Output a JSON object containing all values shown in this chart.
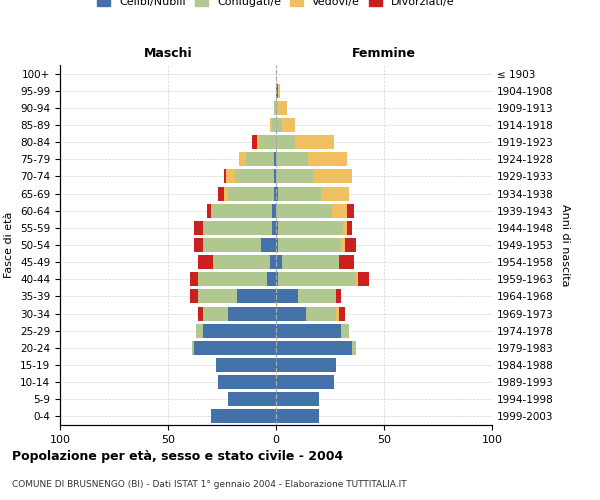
{
  "age_groups": [
    "0-4",
    "5-9",
    "10-14",
    "15-19",
    "20-24",
    "25-29",
    "30-34",
    "35-39",
    "40-44",
    "45-49",
    "50-54",
    "55-59",
    "60-64",
    "65-69",
    "70-74",
    "75-79",
    "80-84",
    "85-89",
    "90-94",
    "95-99",
    "100+"
  ],
  "birth_years": [
    "1999-2003",
    "1994-1998",
    "1989-1993",
    "1984-1988",
    "1979-1983",
    "1974-1978",
    "1969-1973",
    "1964-1968",
    "1959-1963",
    "1954-1958",
    "1949-1953",
    "1944-1948",
    "1939-1943",
    "1934-1938",
    "1929-1933",
    "1924-1928",
    "1919-1923",
    "1914-1918",
    "1909-1913",
    "1904-1908",
    "≤ 1903"
  ],
  "colors": {
    "celibi": "#4472a8",
    "coniugati": "#b0c890",
    "vedovi": "#f0c060",
    "divorziati": "#cc2020"
  },
  "maschi": {
    "celibi": [
      30,
      22,
      27,
      28,
      38,
      34,
      22,
      18,
      4,
      3,
      7,
      2,
      2,
      1,
      1,
      1,
      0,
      0,
      0,
      0,
      0
    ],
    "coniugati": [
      0,
      0,
      0,
      0,
      1,
      3,
      12,
      18,
      32,
      26,
      27,
      32,
      28,
      21,
      18,
      13,
      8,
      2,
      1,
      0,
      0
    ],
    "vedovi": [
      0,
      0,
      0,
      0,
      0,
      0,
      0,
      0,
      0,
      0,
      0,
      0,
      0,
      2,
      4,
      3,
      1,
      1,
      0,
      0,
      0
    ],
    "divorziati": [
      0,
      0,
      0,
      0,
      0,
      0,
      2,
      4,
      4,
      7,
      4,
      4,
      2,
      3,
      1,
      0,
      2,
      0,
      0,
      0,
      0
    ]
  },
  "femmine": {
    "nubili": [
      20,
      20,
      27,
      28,
      35,
      30,
      14,
      10,
      1,
      3,
      1,
      1,
      0,
      1,
      0,
      0,
      0,
      0,
      0,
      1,
      0
    ],
    "coniugate": [
      0,
      0,
      0,
      0,
      2,
      4,
      14,
      18,
      36,
      26,
      29,
      30,
      26,
      20,
      17,
      15,
      9,
      3,
      1,
      0,
      0
    ],
    "vedove": [
      0,
      0,
      0,
      0,
      0,
      0,
      1,
      0,
      1,
      0,
      2,
      2,
      7,
      13,
      18,
      18,
      18,
      6,
      4,
      1,
      0
    ],
    "divorziate": [
      0,
      0,
      0,
      0,
      0,
      0,
      3,
      2,
      5,
      7,
      5,
      2,
      3,
      0,
      0,
      0,
      0,
      0,
      0,
      0,
      0
    ]
  },
  "title": "Popolazione per età, sesso e stato civile - 2004",
  "subtitle": "COMUNE DI BRUSNENGO (BI) - Dati ISTAT 1° gennaio 2004 - Elaborazione TUTTITALIA.IT",
  "xlabel_left": "Maschi",
  "xlabel_right": "Femmine",
  "ylabel_left": "Fasce di età",
  "ylabel_right": "Anni di nascita",
  "xlim": 100,
  "legend_labels": [
    "Celibi/Nubili",
    "Coniugati/e",
    "Vedovi/e",
    "Divorziati/e"
  ]
}
